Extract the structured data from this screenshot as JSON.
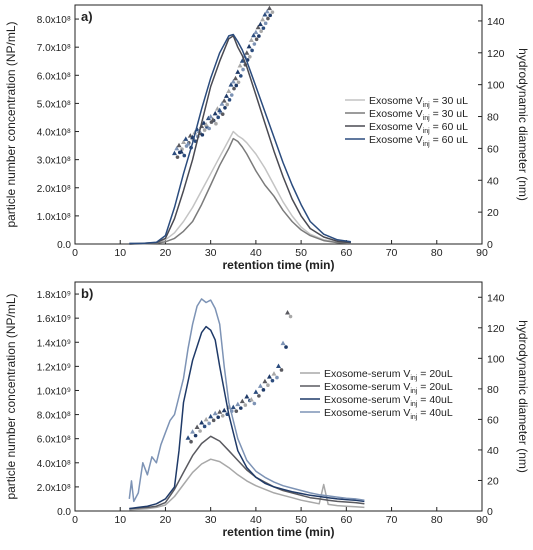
{
  "chart_data": [
    {
      "type": "line",
      "panel_label": "a)",
      "xlabel": "retention time (min)",
      "ylabel": "particle number concentration (NP/mL)",
      "y2label": "hydrodynamic diameter (nm)",
      "xlim": [
        0,
        90
      ],
      "ylim": [
        0,
        850000000.0
      ],
      "y2lim": [
        0,
        150
      ],
      "xticks": [
        "0",
        "10",
        "20",
        "30",
        "40",
        "50",
        "60",
        "70",
        "80",
        "90"
      ],
      "yticks": [
        {
          "v": 0,
          "label": "0.0"
        },
        {
          "v": 100000000.0,
          "label": "1.0x10⁸"
        },
        {
          "v": 200000000.0,
          "label": "2.0x10⁸"
        },
        {
          "v": 300000000.0,
          "label": "3.0x10⁸"
        },
        {
          "v": 400000000.0,
          "label": "4.0x10⁸"
        },
        {
          "v": 500000000.0,
          "label": "5.0x10⁸"
        },
        {
          "v": 600000000.0,
          "label": "6.0x10⁸"
        },
        {
          "v": 700000000.0,
          "label": "7.0x10⁸"
        },
        {
          "v": 800000000.0,
          "label": "8.0x10⁸"
        }
      ],
      "y2ticks": [
        "0",
        "20",
        "40",
        "60",
        "80",
        "100",
        "120",
        "140"
      ],
      "legend_position": "right",
      "series": [
        {
          "name": "Exosome V_inj = 30 uL",
          "prefix": "Exosome V",
          "sub": "inj",
          "suffix": " = 30 uL",
          "color": "#c4c4c4",
          "x": [
            12,
            15,
            18,
            20,
            22,
            24,
            26,
            28,
            30,
            32,
            34,
            35,
            36,
            37,
            38,
            40,
            42,
            44,
            46,
            48,
            50,
            52,
            55,
            58,
            61
          ],
          "y": [
            0,
            2000000.0,
            5000000.0,
            15000000.0,
            40000000.0,
            80000000.0,
            130000000.0,
            190000000.0,
            250000000.0,
            310000000.0,
            370000000.0,
            400000000.0,
            385000000.0,
            375000000.0,
            360000000.0,
            320000000.0,
            270000000.0,
            210000000.0,
            150000000.0,
            100000000.0,
            60000000.0,
            35000000.0,
            15000000.0,
            7000000.0,
            3000000.0
          ]
        },
        {
          "name": "Exosome V_inj = 30 uL",
          "prefix": "Exosome V",
          "sub": "inj",
          "suffix": " = 30 uL",
          "color": "#7b7b7b",
          "x": [
            12,
            15,
            18,
            20,
            22,
            24,
            26,
            28,
            30,
            32,
            34,
            35,
            36,
            37,
            38,
            40,
            42,
            44,
            46,
            48,
            50,
            52,
            55,
            58,
            61
          ],
          "y": [
            0,
            1000000.0,
            3000000.0,
            8000000.0,
            20000000.0,
            45000000.0,
            80000000.0,
            140000000.0,
            210000000.0,
            280000000.0,
            340000000.0,
            375000000.0,
            365000000.0,
            345000000.0,
            320000000.0,
            260000000.0,
            210000000.0,
            170000000.0,
            120000000.0,
            80000000.0,
            50000000.0,
            30000000.0,
            12000000.0,
            5000000.0,
            2000000.0
          ]
        },
        {
          "name": "Exosome V_inj = 60 uL",
          "prefix": "Exosome V",
          "sub": "inj",
          "suffix": " = 60 uL",
          "color": "#4a4a52",
          "x": [
            12,
            15,
            18,
            20,
            22,
            24,
            26,
            28,
            30,
            32,
            34,
            35,
            36,
            37,
            38,
            40,
            42,
            44,
            46,
            48,
            50,
            52,
            55,
            58,
            61
          ],
          "y": [
            0,
            2000000.0,
            5000000.0,
            20000000.0,
            90000000.0,
            190000000.0,
            300000000.0,
            430000000.0,
            560000000.0,
            650000000.0,
            730000000.0,
            740000000.0,
            700000000.0,
            670000000.0,
            630000000.0,
            530000000.0,
            430000000.0,
            330000000.0,
            240000000.0,
            160000000.0,
            100000000.0,
            55000000.0,
            25000000.0,
            10000000.0,
            5000000.0
          ]
        },
        {
          "name": "Exosome V_inj = 60 uL",
          "prefix": "Exosome V",
          "sub": "inj",
          "suffix": " = 60 uL",
          "color": "#2b4c7e",
          "x": [
            12,
            15,
            18,
            20,
            22,
            24,
            26,
            28,
            30,
            32,
            34,
            35,
            36,
            37,
            38,
            40,
            42,
            44,
            46,
            48,
            50,
            52,
            55,
            58,
            61
          ],
          "y": [
            2000000.0,
            2000000.0,
            6000000.0,
            30000000.0,
            130000000.0,
            250000000.0,
            360000000.0,
            480000000.0,
            590000000.0,
            680000000.0,
            740000000.0,
            745000000.0,
            720000000.0,
            690000000.0,
            650000000.0,
            560000000.0,
            470000000.0,
            380000000.0,
            290000000.0,
            210000000.0,
            140000000.0,
            80000000.0,
            35000000.0,
            15000000.0,
            8000000.0
          ]
        }
      ],
      "diameter_points": {
        "x": [
          22,
          22.5,
          23,
          23.5,
          24,
          24.5,
          25,
          25.5,
          26,
          26.5,
          27,
          27.5,
          28,
          28.5,
          29,
          29.5,
          30,
          30.5,
          31,
          31.5,
          32,
          32.5,
          33,
          33.5,
          34,
          34.5,
          35,
          35.5,
          36,
          36.5,
          37,
          37.5,
          38,
          38.5,
          39,
          39.5,
          40,
          40.5,
          41,
          41.5,
          42,
          42.5,
          43
        ],
        "y": [
          57,
          60,
          62,
          58,
          64,
          66,
          63,
          68,
          67,
          70,
          72,
          71,
          74,
          76,
          75,
          79,
          80,
          78,
          82,
          85,
          84,
          88,
          90,
          93,
          96,
          100,
          102,
          104,
          108,
          112,
          115,
          118,
          120,
          124,
          128,
          131,
          133,
          136,
          138,
          141,
          144,
          146,
          148
        ]
      }
    },
    {
      "type": "line",
      "panel_label": "b)",
      "xlabel": "retention time (min)",
      "ylabel": "particle number concentration (NP/mL)",
      "y2label": "hydrodynamic diameter (nm)",
      "xlim": [
        0,
        90
      ],
      "ylim": [
        0,
        1900000000.0
      ],
      "y2lim": [
        0,
        150
      ],
      "xticks": [
        "0",
        "10",
        "20",
        "30",
        "40",
        "50",
        "60",
        "70",
        "80",
        "90"
      ],
      "yticks": [
        {
          "v": 0,
          "label": "0.0"
        },
        {
          "v": 200000000.0,
          "label": "2.0x10⁸"
        },
        {
          "v": 400000000.0,
          "label": "4.0x10⁸"
        },
        {
          "v": 600000000.0,
          "label": "6.0x10⁸"
        },
        {
          "v": 800000000.0,
          "label": "8.0x10⁸"
        },
        {
          "v": 1000000000.0,
          "label": "1.0x10⁹"
        },
        {
          "v": 1200000000.0,
          "label": "1.2x10⁹"
        },
        {
          "v": 1400000000.0,
          "label": "1.4x10⁹"
        },
        {
          "v": 1600000000.0,
          "label": "1.6x10⁹"
        },
        {
          "v": 1800000000.0,
          "label": "1.8x10⁹"
        }
      ],
      "y2ticks": [
        "0",
        "20",
        "40",
        "60",
        "80",
        "100",
        "120",
        "140"
      ],
      "legend_position": "right",
      "series": [
        {
          "name": "Exosome-serum V_inj = 20uL",
          "prefix": "Exosome-serum V",
          "sub": "inj",
          "suffix": " = 20uL",
          "color": "#a8a8a8",
          "x": [
            12,
            14,
            16,
            18,
            20,
            22,
            24,
            26,
            28,
            30,
            32,
            34,
            36,
            38,
            40,
            42,
            44,
            46,
            48,
            50,
            52,
            54,
            55,
            56,
            58,
            60,
            62,
            64
          ],
          "y": [
            10000000.0,
            15000000.0,
            20000000.0,
            30000000.0,
            50000000.0,
            120000000.0,
            220000000.0,
            320000000.0,
            390000000.0,
            430000000.0,
            410000000.0,
            360000000.0,
            300000000.0,
            250000000.0,
            210000000.0,
            180000000.0,
            150000000.0,
            130000000.0,
            110000000.0,
            90000000.0,
            75000000.0,
            60000000.0,
            220000000.0,
            55000000.0,
            45000000.0,
            40000000.0,
            35000000.0,
            30000000.0
          ]
        },
        {
          "name": "Exosome-serum V_inj = 20uL",
          "prefix": "Exosome-serum V",
          "sub": "inj",
          "suffix": " = 20uL",
          "color": "#5a5a60",
          "x": [
            12,
            14,
            16,
            18,
            20,
            22,
            24,
            26,
            28,
            30,
            32,
            34,
            36,
            38,
            40,
            42,
            44,
            46,
            48,
            50,
            52,
            54,
            56,
            58,
            60,
            62,
            64
          ],
          "y": [
            20000000.0,
            25000000.0,
            30000000.0,
            40000000.0,
            70000000.0,
            180000000.0,
            320000000.0,
            460000000.0,
            560000000.0,
            620000000.0,
            580000000.0,
            500000000.0,
            420000000.0,
            340000000.0,
            280000000.0,
            240000000.0,
            200000000.0,
            170000000.0,
            150000000.0,
            130000000.0,
            110000000.0,
            100000000.0,
            90000000.0,
            80000000.0,
            75000000.0,
            70000000.0,
            60000000.0
          ]
        },
        {
          "name": "Exosome-serum V_inj = 40uL",
          "prefix": "Exosome-serum V",
          "sub": "inj",
          "suffix": " = 40uL",
          "color": "#1f3a68",
          "x": [
            12,
            14,
            16,
            18,
            20,
            22,
            23,
            24,
            26,
            28,
            29,
            30,
            31,
            32,
            34,
            36,
            38,
            40,
            42,
            44,
            46,
            48,
            50,
            52,
            54,
            56,
            58,
            60,
            62,
            64
          ],
          "y": [
            20000000.0,
            30000000.0,
            40000000.0,
            60000000.0,
            100000000.0,
            200000000.0,
            500000000.0,
            900000000.0,
            1250000000.0,
            1480000000.0,
            1530000000.0,
            1500000000.0,
            1420000000.0,
            1200000000.0,
            800000000.0,
            500000000.0,
            360000000.0,
            280000000.0,
            230000000.0,
            200000000.0,
            180000000.0,
            160000000.0,
            145000000.0,
            130000000.0,
            120000000.0,
            110000000.0,
            100000000.0,
            95000000.0,
            90000000.0,
            80000000.0
          ]
        },
        {
          "name": "Exosome-serum V_inj = 40uL",
          "prefix": "Exosome-serum V",
          "sub": "inj",
          "suffix": " = 40uL",
          "color": "#7d93b5",
          "x": [
            12,
            12.5,
            13,
            14,
            15,
            16,
            17,
            18,
            19,
            20,
            21,
            22,
            23,
            24,
            25,
            26,
            27,
            28,
            29,
            30,
            31,
            32,
            33,
            34,
            36,
            38,
            40,
            42,
            44,
            46,
            48,
            50,
            52,
            54,
            56,
            58,
            60,
            62,
            64
          ],
          "y": [
            100000000.0,
            250000000.0,
            80000000.0,
            150000000.0,
            400000000.0,
            300000000.0,
            450000000.0,
            400000000.0,
            550000000.0,
            650000000.0,
            750000000.0,
            800000000.0,
            950000000.0,
            1100000000.0,
            1350000000.0,
            1550000000.0,
            1700000000.0,
            1760000000.0,
            1730000000.0,
            1750000000.0,
            1680000000.0,
            1550000000.0,
            1200000000.0,
            900000000.0,
            600000000.0,
            420000000.0,
            330000000.0,
            280000000.0,
            240000000.0,
            210000000.0,
            190000000.0,
            170000000.0,
            150000000.0,
            135000000.0,
            125000000.0,
            115000000.0,
            105000000.0,
            100000000.0,
            90000000.0
          ]
        }
      ],
      "diameter_points": {
        "x": [
          25,
          26,
          27,
          28,
          29,
          30,
          31,
          32,
          33,
          34,
          35,
          36,
          37,
          38,
          39,
          40,
          41,
          42,
          43,
          44,
          45,
          46,
          47
        ],
        "y": [
          48,
          52,
          55,
          58,
          60,
          62,
          64,
          65,
          66,
          68,
          68,
          70,
          72,
          75,
          73,
          78,
          82,
          85,
          88,
          90,
          95,
          110,
          130
        ]
      }
    }
  ]
}
